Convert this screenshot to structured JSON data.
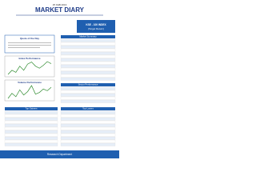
{
  "header": {
    "date": "25 FEB 2016",
    "title": "MARKET DIARY"
  },
  "badge": {
    "title": "KSE - 100 INDEX",
    "subtitle": "(Target Return)"
  },
  "quote": {
    "title": "Quote of the Day"
  },
  "charts": [
    {
      "title": "Index Performance",
      "color": "#2e8b2e",
      "values": [
        31,
        32,
        31.5,
        33,
        32,
        33.5,
        34,
        33,
        32.5,
        33.2,
        34.1,
        33.6
      ]
    },
    {
      "title": "Volume Performance",
      "color": "#2e8b2e",
      "values": [
        20,
        26,
        22,
        30,
        24,
        28,
        35,
        25,
        27,
        31,
        29,
        33
      ]
    }
  ],
  "sections": [
    "Market Summary",
    "Sector Performance",
    "Top Gainers",
    "Top Losers"
  ],
  "footer": "Research Department"
}
